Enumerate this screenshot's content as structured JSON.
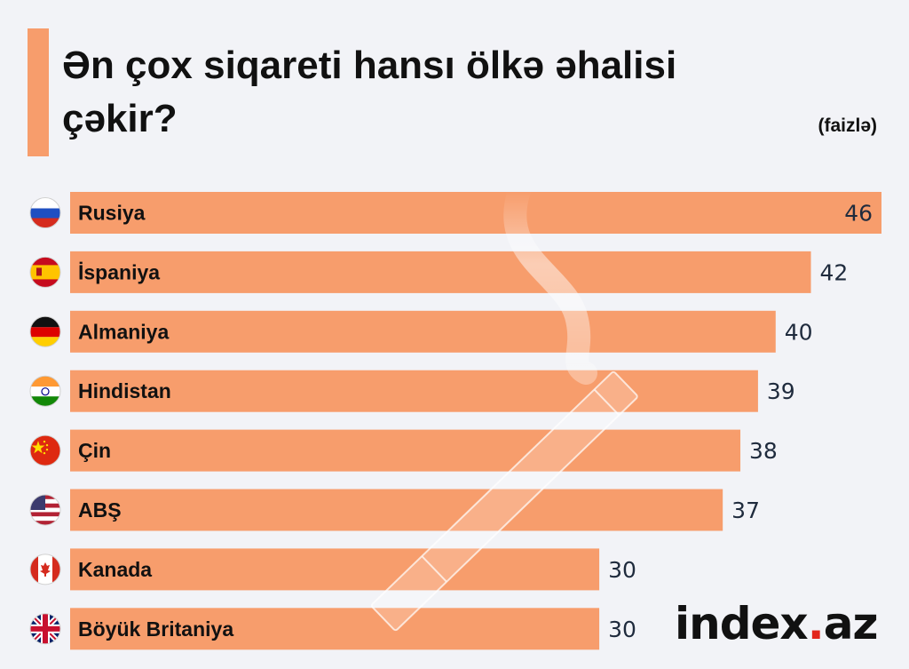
{
  "title": "Ən çox siqareti hansı ölkə əhalisi çəkir?",
  "unit_note": "(faizlə)",
  "logo": {
    "name": "index",
    "dot": ".",
    "tld": "az"
  },
  "colors": {
    "bar": "#f79d6c",
    "accent": "#f79d6c",
    "background": "#f2f3f7"
  },
  "chart_data": {
    "type": "bar",
    "orientation": "horizontal",
    "title": "Ən çox siqareti hansı ölkə əhalisi çəkir?",
    "subtitle": "(faizlə)",
    "categories": [
      "Rusiya",
      "İspaniya",
      "Almaniya",
      "Hindistan",
      "Çin",
      "ABŞ",
      "Kanada",
      "Böyük Britaniya"
    ],
    "values": [
      46,
      42,
      40,
      39,
      38,
      37,
      30,
      30
    ],
    "flag_icons": [
      "flag-russia-icon",
      "flag-spain-icon",
      "flag-germany-icon",
      "flag-india-icon",
      "flag-china-icon",
      "flag-usa-icon",
      "flag-canada-icon",
      "flag-uk-icon"
    ],
    "xlim": [
      0,
      46
    ],
    "grid": false,
    "legend": "none"
  }
}
